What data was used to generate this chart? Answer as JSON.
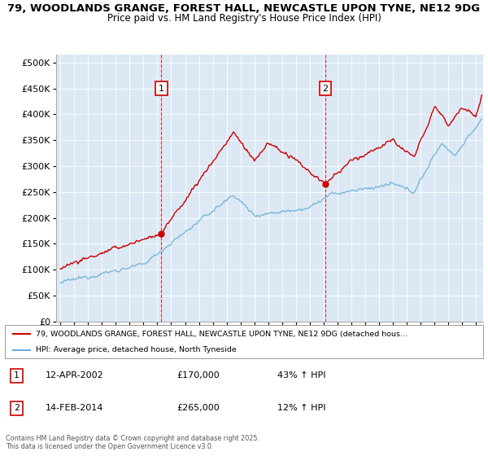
{
  "title_line1": "79, WOODLANDS GRANGE, FOREST HALL, NEWCASTLE UPON TYNE, NE12 9DG",
  "title_line2": "Price paid vs. HM Land Registry's House Price Index (HPI)",
  "bg_color": "#dce9f5",
  "red_color": "#cc0000",
  "blue_color": "#6aaed6",
  "annotation1": {
    "label": "1",
    "date_str": "12-APR-2002",
    "price": 170000,
    "pct": "43% ↑ HPI",
    "x_year": 2002.28
  },
  "annotation2": {
    "label": "2",
    "date_str": "14-FEB-2014",
    "price": 265000,
    "pct": "12% ↑ HPI",
    "x_year": 2014.12
  },
  "legend_line1": "79, WOODLANDS GRANGE, FOREST HALL, NEWCASTLE UPON TYNE, NE12 9DG (detached hous…",
  "legend_line2": "HPI: Average price, detached house, North Tyneside",
  "footer": "Contains HM Land Registry data © Crown copyright and database right 2025.\nThis data is licensed under the Open Government Licence v3.0.",
  "yticks": [
    0,
    50000,
    100000,
    150000,
    200000,
    250000,
    300000,
    350000,
    400000,
    450000,
    500000
  ],
  "ylim": [
    0,
    515000
  ],
  "xlim_start": 1994.7,
  "xlim_end": 2025.5
}
